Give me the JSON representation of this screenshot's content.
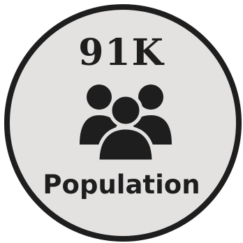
{
  "stat": {
    "value": "91K",
    "label": "Population",
    "icon": "people-group-icon"
  },
  "colors": {
    "fill": "#e3e2e1",
    "ink": "#1e1e1e"
  }
}
